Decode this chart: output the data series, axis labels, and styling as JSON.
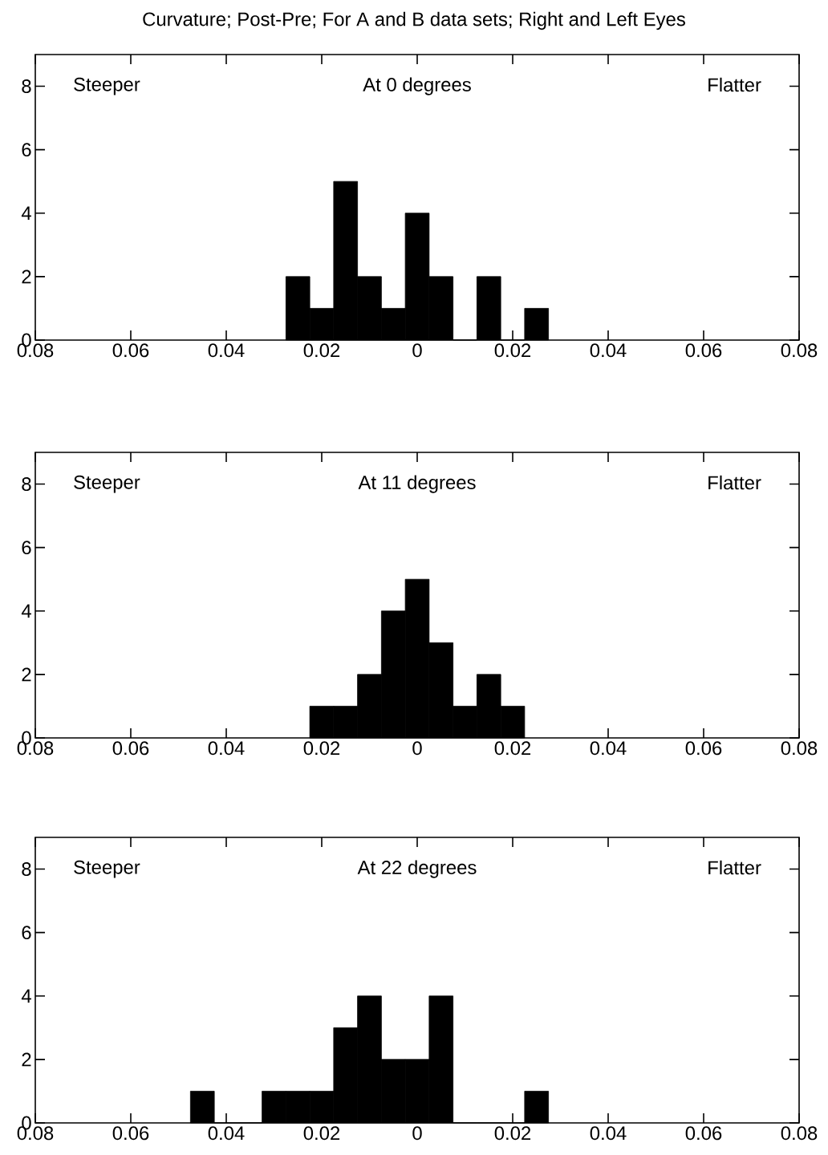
{
  "chart_data": [
    {
      "type": "histogram",
      "title": "Curvature; Post-Pre; For A and B data sets; Right and Left Eyes",
      "subtitle": "At 0 degrees",
      "annotations": [
        "Steeper",
        "Flatter"
      ],
      "color": "#000000",
      "bins": [
        -0.0275,
        -0.0225,
        -0.0175,
        -0.0125,
        -0.0075,
        -0.0025,
        0.0025,
        0.0075,
        0.0125,
        0.0175,
        0.0225,
        0.0275
      ],
      "values": [
        2,
        1,
        5,
        2,
        1,
        4,
        2,
        0,
        2,
        0,
        1
      ],
      "xlim": [
        -0.08,
        0.08
      ],
      "xticks": [
        {
          "value": -0.08,
          "label": "0.08"
        },
        {
          "value": -0.06,
          "label": "0.06"
        },
        {
          "value": -0.04,
          "label": "0.04"
        },
        {
          "value": -0.02,
          "label": "0.02"
        },
        0,
        0.02,
        0.04,
        0.06,
        0.08
      ],
      "ylim": [
        0,
        9
      ],
      "yticks": [
        0,
        2,
        4,
        6,
        8
      ]
    },
    {
      "type": "histogram",
      "subtitle": "At 11 degrees",
      "annotations": [
        "Steeper",
        "Flatter"
      ],
      "color": "#000000",
      "bins": [
        -0.0225,
        -0.0175,
        -0.0125,
        -0.0075,
        -0.0025,
        0.0025,
        0.0075,
        0.0125,
        0.0175,
        0.0225
      ],
      "values": [
        1,
        1,
        2,
        4,
        5,
        3,
        1,
        2,
        1
      ],
      "xlim": [
        -0.08,
        0.08
      ],
      "xticks": [
        {
          "value": -0.08,
          "label": "0.08"
        },
        {
          "value": -0.06,
          "label": "0.06"
        },
        {
          "value": -0.04,
          "label": "0.04"
        },
        {
          "value": -0.02,
          "label": "0.02"
        },
        0,
        0.02,
        0.04,
        0.06,
        0.08
      ],
      "ylim": [
        0,
        9
      ],
      "yticks": [
        0,
        2,
        4,
        6,
        8
      ]
    },
    {
      "type": "histogram",
      "subtitle": "At 22 degrees",
      "annotations": [
        "Steeper",
        "Flatter"
      ],
      "color": "#000000",
      "bins": [
        -0.0475,
        -0.0425,
        -0.0375,
        -0.0325,
        -0.0275,
        -0.0225,
        -0.0175,
        -0.0125,
        -0.0075,
        -0.0025,
        0.0025,
        0.0075,
        0.0125,
        0.0175,
        0.0225,
        0.0275
      ],
      "values": [
        1,
        0,
        0,
        1,
        1,
        1,
        3,
        4,
        2,
        2,
        4,
        0,
        0,
        0,
        1
      ],
      "xlim": [
        -0.08,
        0.08
      ],
      "xticks": [
        {
          "value": -0.08,
          "label": "0.08"
        },
        {
          "value": -0.06,
          "label": "0.06"
        },
        {
          "value": -0.04,
          "label": "0.04"
        },
        {
          "value": -0.02,
          "label": "0.02"
        },
        0,
        0.02,
        0.04,
        0.06,
        0.08
      ],
      "ylim": [
        0,
        9
      ],
      "yticks": [
        0,
        2,
        4,
        6,
        8
      ]
    }
  ]
}
